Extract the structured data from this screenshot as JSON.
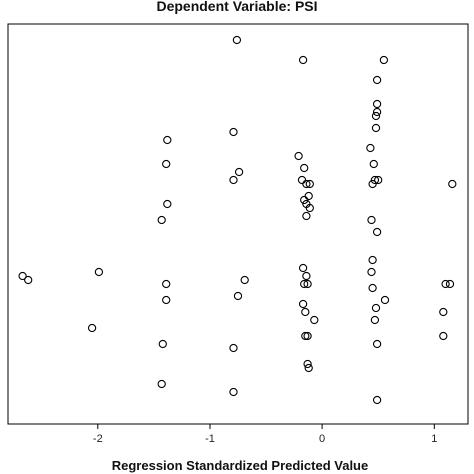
{
  "chart_data": {
    "type": "scatter",
    "title": "Dependent Variable: PSI",
    "xlabel": "Regression Standardized Predicted Value",
    "ylabel": "",
    "xlim": [
      -2.8,
      1.3
    ],
    "ylim": [
      0,
      1
    ],
    "xticks": [
      -2,
      -1,
      0,
      1
    ],
    "xtick_labels": [
      "-2",
      "-1",
      "0",
      "1"
    ],
    "grid": false,
    "legend": "none",
    "marker_color": "#000000",
    "series": [
      {
        "points": [
          [
            -2.67,
            0.37
          ],
          [
            -2.62,
            0.36
          ],
          [
            -1.99,
            0.38
          ],
          [
            -2.05,
            0.24
          ],
          [
            -1.38,
            0.71
          ],
          [
            -1.39,
            0.65
          ],
          [
            -1.38,
            0.55
          ],
          [
            -1.43,
            0.51
          ],
          [
            -1.39,
            0.35
          ],
          [
            -1.39,
            0.31
          ],
          [
            -1.42,
            0.2
          ],
          [
            -1.43,
            0.1
          ],
          [
            -0.76,
            0.96
          ],
          [
            -0.79,
            0.73
          ],
          [
            -0.74,
            0.63
          ],
          [
            -0.79,
            0.61
          ],
          [
            -0.69,
            0.36
          ],
          [
            -0.75,
            0.32
          ],
          [
            -0.79,
            0.19
          ],
          [
            -0.79,
            0.08
          ],
          [
            -0.17,
            0.91
          ],
          [
            -0.21,
            0.67
          ],
          [
            -0.16,
            0.64
          ],
          [
            -0.18,
            0.61
          ],
          [
            -0.14,
            0.6
          ],
          [
            -0.11,
            0.6
          ],
          [
            -0.12,
            0.57
          ],
          [
            -0.16,
            0.56
          ],
          [
            -0.14,
            0.55
          ],
          [
            -0.11,
            0.54
          ],
          [
            -0.14,
            0.52
          ],
          [
            -0.17,
            0.39
          ],
          [
            -0.14,
            0.37
          ],
          [
            -0.16,
            0.35
          ],
          [
            -0.13,
            0.35
          ],
          [
            -0.17,
            0.3
          ],
          [
            -0.15,
            0.28
          ],
          [
            -0.07,
            0.26
          ],
          [
            -0.15,
            0.22
          ],
          [
            -0.13,
            0.22
          ],
          [
            -0.13,
            0.15
          ],
          [
            -0.12,
            0.14
          ],
          [
            0.55,
            0.91
          ],
          [
            0.49,
            0.86
          ],
          [
            0.49,
            0.8
          ],
          [
            0.49,
            0.78
          ],
          [
            0.48,
            0.77
          ],
          [
            0.48,
            0.74
          ],
          [
            0.43,
            0.69
          ],
          [
            0.46,
            0.65
          ],
          [
            0.47,
            0.61
          ],
          [
            0.5,
            0.61
          ],
          [
            0.45,
            0.6
          ],
          [
            0.44,
            0.51
          ],
          [
            0.49,
            0.48
          ],
          [
            0.45,
            0.41
          ],
          [
            0.44,
            0.38
          ],
          [
            0.45,
            0.34
          ],
          [
            0.56,
            0.31
          ],
          [
            0.48,
            0.29
          ],
          [
            0.47,
            0.26
          ],
          [
            0.49,
            0.2
          ],
          [
            0.49,
            0.06
          ],
          [
            1.16,
            0.6
          ],
          [
            1.1,
            0.35
          ],
          [
            1.14,
            0.35
          ],
          [
            1.08,
            0.28
          ],
          [
            1.08,
            0.22
          ]
        ]
      }
    ]
  }
}
